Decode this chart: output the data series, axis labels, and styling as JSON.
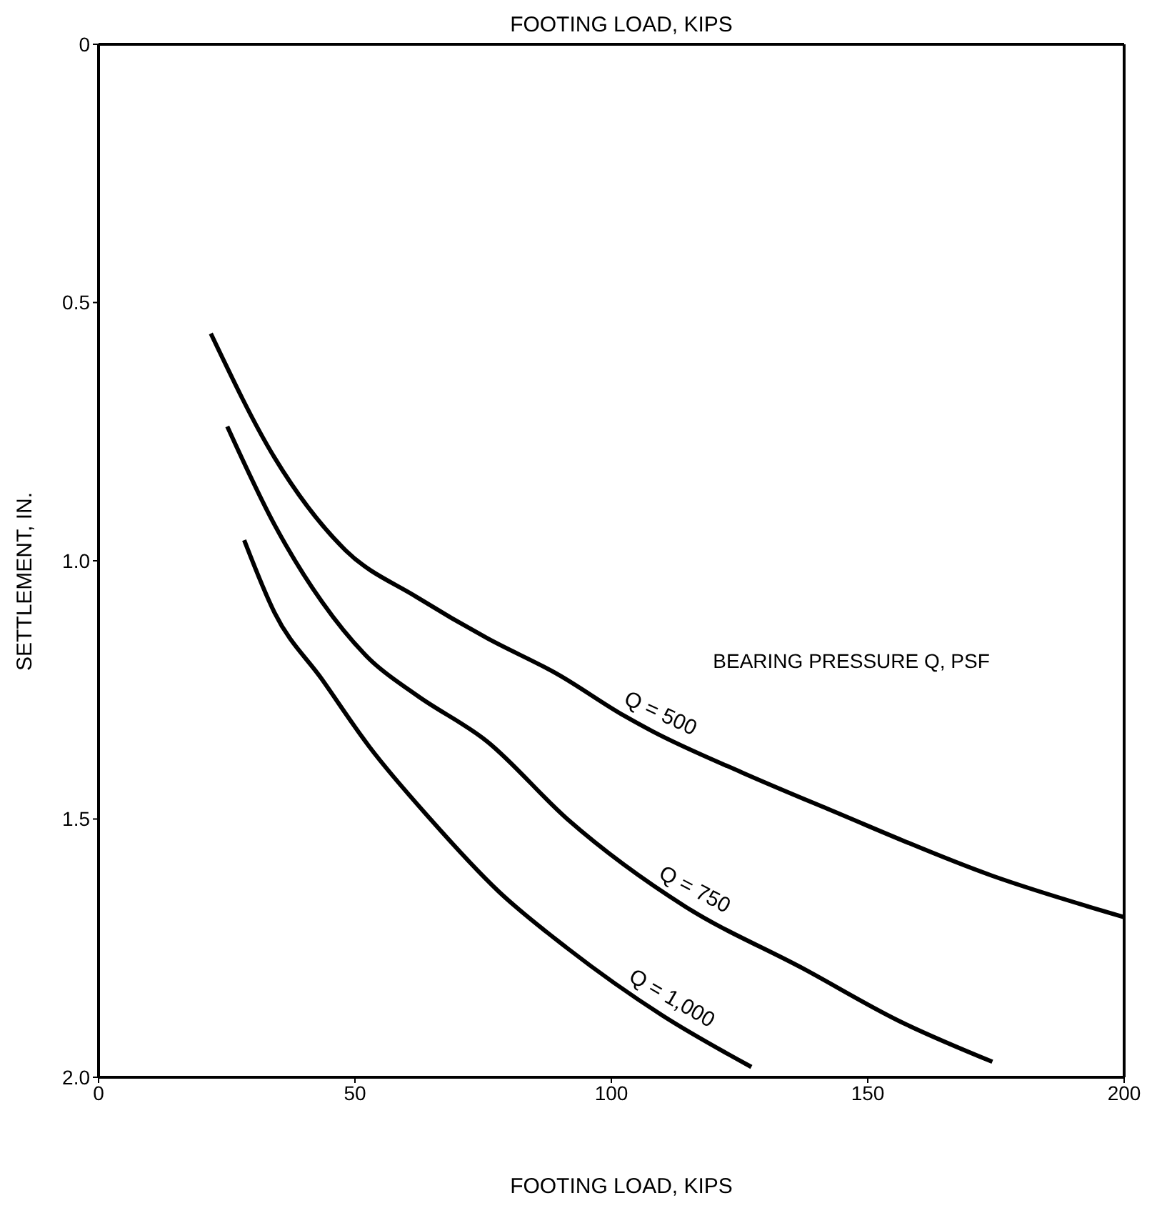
{
  "chart_data": {
    "type": "line",
    "title": "FOOTING LOAD, KIPS",
    "xlabel": "FOOTING LOAD, KIPS",
    "ylabel": "SETTLEMENT, IN.",
    "xlim": [
      0,
      200
    ],
    "xticks": [
      0,
      50,
      100,
      150,
      200
    ],
    "ylim": [
      2,
      0
    ],
    "yticks": [
      0,
      0.5,
      {
        "value": 1,
        "label": "1.0"
      },
      1.5,
      {
        "value": 2,
        "label": "2.0"
      }
    ],
    "grid": false,
    "legend": false,
    "marker": "none",
    "line_style": "solid",
    "annotations": [
      "BEARING PRESSURE Q, PSF"
    ],
    "series": [
      {
        "name": "Q = 500",
        "color": "#000000",
        "x": [
          21.9,
          34.3,
          48.2,
          62,
          75.8,
          89.6,
          102.5,
          108,
          125.5,
          142.1,
          174.3,
          200
        ],
        "values": [
          0.56,
          0.8,
          0.98,
          1.07,
          1.15,
          1.22,
          1.3,
          1.33,
          1.41,
          1.48,
          1.61,
          1.69
        ]
      },
      {
        "name": "Q = 750",
        "color": "#000000",
        "x": [
          25.1,
          34.3,
          43.6,
          52.8,
          62,
          75.8,
          91.4,
          114.5,
          137.5,
          155.9,
          174.3
        ],
        "values": [
          0.74,
          0.93,
          1.08,
          1.19,
          1.26,
          1.35,
          1.5,
          1.67,
          1.79,
          1.89,
          1.97
        ]
      },
      {
        "name": "Q = 1,000",
        "color": "#000000",
        "x": [
          28.4,
          34.3,
          43.6,
          52.8,
          64.7,
          78,
          91.4,
          109.9,
          127.3
        ],
        "values": [
          0.96,
          1.1,
          1.23,
          1.36,
          1.5,
          1.64,
          1.75,
          1.88,
          1.98
        ]
      }
    ]
  }
}
